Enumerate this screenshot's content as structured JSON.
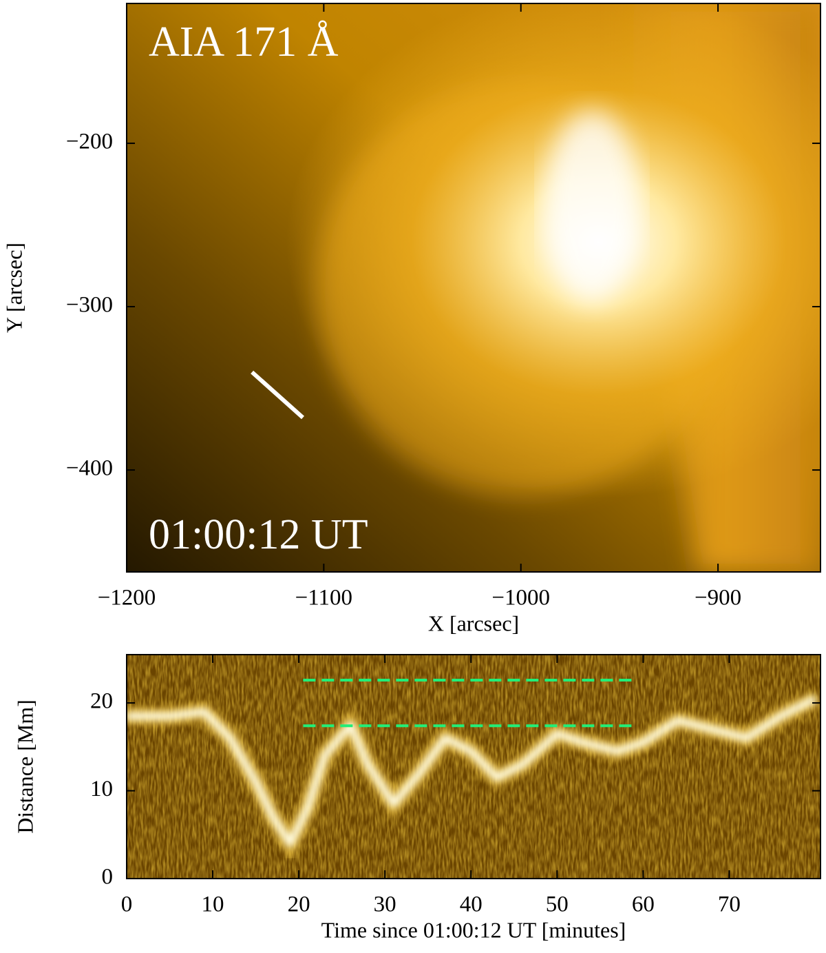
{
  "chart_data": [
    {
      "type": "image",
      "annotations": [
        "AIA 171 Å",
        "01:00:12 UT"
      ],
      "xlabel": "X [arcsec]",
      "ylabel": "Y [arcsec]",
      "xlim": [
        -1200,
        -848
      ],
      "ylim": [
        -462.4,
        -114.4
      ],
      "xticks": [
        {
          "value": -1200,
          "label": "−1200"
        },
        {
          "value": -1100,
          "label": "−1100"
        },
        {
          "value": -1000,
          "label": "−1000"
        },
        {
          "value": -900,
          "label": "−900"
        }
      ],
      "yticks": [
        {
          "value": -200,
          "label": "−200"
        },
        {
          "value": -300,
          "label": "−300"
        },
        {
          "value": -400,
          "label": "−400"
        }
      ],
      "slit": {
        "x": [
          -1136.4,
          -1110.6
        ],
        "y": [
          -340.1,
          -367.9
        ],
        "color": "#ffffff"
      }
    },
    {
      "type": "image",
      "xlabel": "Time since 01:00:12 UT [minutes]",
      "ylabel": "Distance [Mm]",
      "xlim": [
        0,
        80.6
      ],
      "ylim": [
        0,
        25.5
      ],
      "xticks": [
        0,
        10,
        20,
        30,
        40,
        50,
        60,
        70
      ],
      "yticks": [
        0,
        10,
        20
      ],
      "track": {
        "x": [
          0,
          5,
          9,
          12,
          15,
          17,
          19,
          21,
          23,
          26,
          28,
          31,
          34,
          37,
          40,
          43,
          46,
          50,
          53,
          57,
          60,
          64,
          68,
          72,
          76,
          80
        ],
        "y": [
          18.5,
          18.5,
          19,
          16,
          11,
          7,
          4,
          8,
          14,
          17.5,
          13,
          8.5,
          12,
          16,
          14.5,
          11.5,
          13,
          16.5,
          15.5,
          14.5,
          15.5,
          18,
          17,
          16,
          18.5,
          20.5
        ],
        "color": "#fffbe0"
      },
      "reference_lines": [
        {
          "x": [
            20.5,
            58.7
          ],
          "y": 22.6
        },
        {
          "x": [
            20.5,
            58.7
          ],
          "y": 17.4
        }
      ],
      "reference_color": "#22ee77"
    }
  ]
}
